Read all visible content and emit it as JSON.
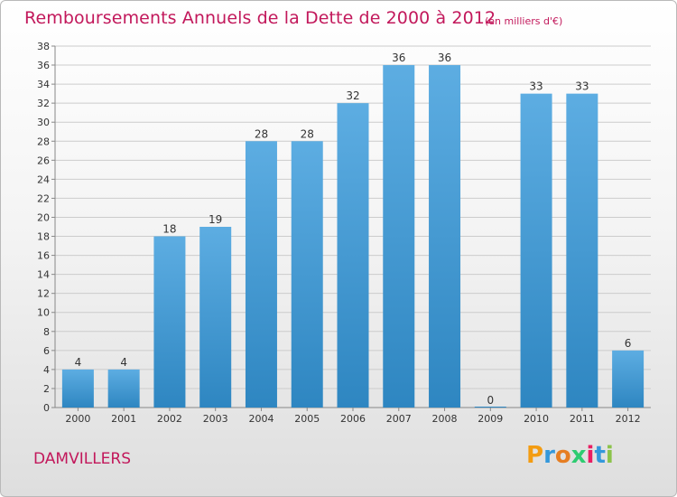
{
  "header": {
    "title": "Remboursements Annuels de la Dette de 2000 à 2012",
    "unit": "(en milliers d'€)"
  },
  "footer": {
    "commune": "DAMVILLERS",
    "logo_text": "Proxiti"
  },
  "colors": {
    "title": "#c2185b",
    "bar_light": "#5dade2",
    "bar_dark": "#2e86c1",
    "grid": "#cccccc"
  },
  "chart_data": {
    "type": "bar",
    "title": "Remboursements Annuels de la Dette de 2000 à 2012",
    "subtitle": "(en milliers d'€)",
    "xlabel": "",
    "ylabel": "",
    "categories": [
      "2000",
      "2001",
      "2002",
      "2003",
      "2004",
      "2005",
      "2006",
      "2007",
      "2008",
      "2009",
      "2010",
      "2011",
      "2012"
    ],
    "values": [
      4,
      4,
      18,
      19,
      28,
      28,
      32,
      36,
      36,
      0,
      33,
      33,
      6
    ],
    "value_labels": [
      "4",
      "4",
      "18",
      "19",
      "28",
      "28",
      "32",
      "36",
      "36",
      "0",
      "33",
      "33",
      "6"
    ],
    "ylim": [
      0,
      38
    ],
    "yticks": [
      0,
      2,
      4,
      6,
      8,
      10,
      12,
      14,
      16,
      18,
      20,
      22,
      24,
      26,
      28,
      30,
      32,
      34,
      36,
      38
    ],
    "grid": true,
    "legend": "none"
  }
}
